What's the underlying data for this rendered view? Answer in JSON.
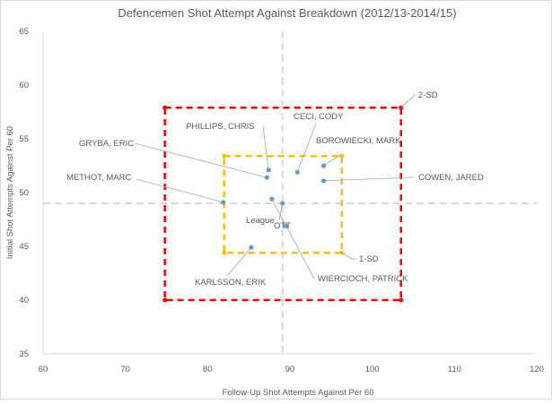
{
  "chart_data": {
    "type": "scatter",
    "title": "Defencemen Shot Attempt Against Breakdown (2012/13-2014/15)",
    "xlabel": "Follow-Up Shot Attempts Against Per 60",
    "ylabel": "Initial Shot Attempts Against Per 60",
    "xlim": [
      60,
      120
    ],
    "ylim": [
      35,
      65
    ],
    "xticks": [
      "60",
      "70",
      "80",
      "90",
      "100",
      "110",
      "120"
    ],
    "yticks": [
      "35",
      "40",
      "45",
      "50",
      "55",
      "60",
      "65"
    ],
    "grid": false,
    "legend": "none",
    "point_color": "#5B9BD5",
    "points": [
      {
        "label": "PHILLIPS, CHRIS",
        "x": 87.4,
        "y": 52.1
      },
      {
        "label": "GRYBA, ERIC",
        "x": 87.2,
        "y": 51.4
      },
      {
        "label": "CECI, CODY",
        "x": 90.9,
        "y": 51.9
      },
      {
        "label": "BOROWIECKI, MARK",
        "x": 94.1,
        "y": 52.5
      },
      {
        "label": "COWEN, JARED",
        "x": 94.1,
        "y": 51.1
      },
      {
        "label": "METHOT, MARC",
        "x": 81.9,
        "y": 49.1
      },
      {
        "label": "WIERCIOCH, PATRICK",
        "x": 87.8,
        "y": 49.4
      },
      {
        "label": "League",
        "x": 89.1,
        "y": 49.0
      },
      {
        "label": "OTT",
        "x": 89.5,
        "y": 46.9
      },
      {
        "label": "KARLSSON, ERIK",
        "x": 85.3,
        "y": 44.9
      }
    ],
    "reference_lines": {
      "x": 89.1,
      "y": 49.0,
      "color": "#D9D9D9"
    },
    "boxes": [
      {
        "label": "1-SD",
        "x": [
          82.0,
          96.3
        ],
        "y": [
          44.4,
          53.4
        ],
        "color": "#FFC000"
      },
      {
        "label": "2-SD",
        "x": [
          74.8,
          103.5
        ],
        "y": [
          40.0,
          57.9
        ],
        "color": "#FF0000"
      }
    ]
  }
}
